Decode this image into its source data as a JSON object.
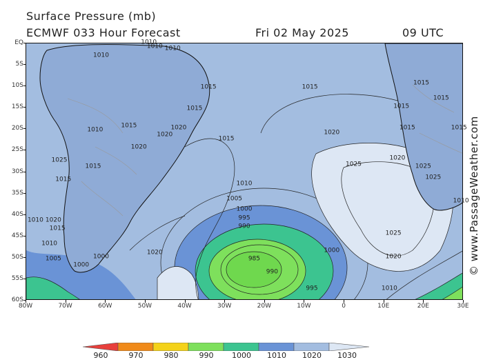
{
  "header": {
    "title": "Surface Pressure (mb)",
    "model": "ECMWF 033 Hour Forecast",
    "date": "Fri 02 May 2025",
    "time": "09 UTC"
  },
  "watermark": "© www.PassageWeather.com",
  "axes": {
    "latitudes": [
      "EQ",
      "5S",
      "10S",
      "15S",
      "20S",
      "25S",
      "30S",
      "35S",
      "40S",
      "45S",
      "50S",
      "55S",
      "60S"
    ],
    "longitudes": [
      "80W",
      "70W",
      "60W",
      "50W",
      "40W",
      "30W",
      "20W",
      "10W",
      "0",
      "10E",
      "20E",
      "30E"
    ]
  },
  "isobar_labels": [
    {
      "text": "1015",
      "lon": -34.0,
      "lat": -10.5
    },
    {
      "text": "1015",
      "lon": -37.5,
      "lat": -15.5
    },
    {
      "text": "1015",
      "lon": -8.5,
      "lat": -10.5
    },
    {
      "text": "1015",
      "lon": -54.0,
      "lat": -19.5
    },
    {
      "text": "1020",
      "lon": -41.5,
      "lat": -20.0
    },
    {
      "text": "1020",
      "lon": -45.0,
      "lat": -21.5
    },
    {
      "text": "1020",
      "lon": -51.5,
      "lat": -24.5
    },
    {
      "text": "1015",
      "lon": -29.5,
      "lat": -22.5
    },
    {
      "text": "1020",
      "lon": -3.0,
      "lat": -21.0
    },
    {
      "text": "1025",
      "lon": 2.5,
      "lat": -28.5
    },
    {
      "text": "1020",
      "lon": 13.5,
      "lat": -27.0
    },
    {
      "text": "1025",
      "lon": 20.0,
      "lat": -29.0
    },
    {
      "text": "1025",
      "lon": 22.5,
      "lat": -31.5
    },
    {
      "text": "1025",
      "lon": 12.5,
      "lat": -44.5
    },
    {
      "text": "1020",
      "lon": 12.5,
      "lat": -50.0
    },
    {
      "text": "1010",
      "lon": -25.0,
      "lat": -33.0
    },
    {
      "text": "1005",
      "lon": -27.5,
      "lat": -36.5
    },
    {
      "text": "1000",
      "lon": -25.0,
      "lat": -39.0
    },
    {
      "text": "995",
      "lon": -25.0,
      "lat": -41.0
    },
    {
      "text": "990",
      "lon": -25.0,
      "lat": -43.0
    },
    {
      "text": "985",
      "lon": -22.5,
      "lat": -50.5
    },
    {
      "text": "990",
      "lon": -18.0,
      "lat": -53.5
    },
    {
      "text": "995",
      "lon": -8.0,
      "lat": -57.5
    },
    {
      "text": "1000",
      "lon": -3.0,
      "lat": -48.5
    },
    {
      "text": "1010",
      "lon": 11.5,
      "lat": -57.5
    },
    {
      "text": "1020",
      "lon": -47.5,
      "lat": -49.0
    },
    {
      "text": "1000",
      "lon": -61.0,
      "lat": -50.0
    },
    {
      "text": "1000",
      "lon": -66.0,
      "lat": -52.0
    },
    {
      "text": "1005",
      "lon": -73.0,
      "lat": -50.5
    },
    {
      "text": "1010",
      "lon": -74.0,
      "lat": -47.0
    },
    {
      "text": "1015",
      "lon": -72.0,
      "lat": -43.5
    },
    {
      "text": "1020",
      "lon": -73.0,
      "lat": -41.5
    },
    {
      "text": "1015",
      "lon": -70.5,
      "lat": -32.0
    },
    {
      "text": "1015",
      "lon": -63.0,
      "lat": -29.0
    },
    {
      "text": "1025",
      "lon": -71.5,
      "lat": -27.5
    },
    {
      "text": "1010",
      "lon": -62.5,
      "lat": -20.5
    },
    {
      "text": "1010",
      "lon": -61.0,
      "lat": -3.0
    },
    {
      "text": "1010",
      "lon": -47.5,
      "lat": -1.0
    },
    {
      "text": "1010",
      "lon": -49.0,
      "lat": 0.0
    },
    {
      "text": "1010",
      "lon": -43.0,
      "lat": -1.5
    },
    {
      "text": "1015",
      "lon": 29.0,
      "lat": -20.0
    },
    {
      "text": "1015",
      "lon": 14.5,
      "lat": -15.0
    },
    {
      "text": "1015",
      "lon": 16.0,
      "lat": -20.0
    },
    {
      "text": "1015",
      "lon": 19.5,
      "lat": -9.5
    },
    {
      "text": "1015",
      "lon": 24.5,
      "lat": -13.0
    },
    {
      "text": "1010",
      "lon": 29.5,
      "lat": -37.0
    },
    {
      "text": "1010",
      "lon": -77.5,
      "lat": -41.5
    }
  ],
  "colorbar": {
    "labels": [
      "960",
      "970",
      "980",
      "990",
      "1000",
      "1010",
      "1020",
      "1030"
    ],
    "colors": [
      "#e8403c",
      "#f08a1a",
      "#f4d21a",
      "#7ee05c",
      "#3cc490",
      "#6a93d6",
      "#a3bde0",
      "#dde7f4"
    ]
  }
}
